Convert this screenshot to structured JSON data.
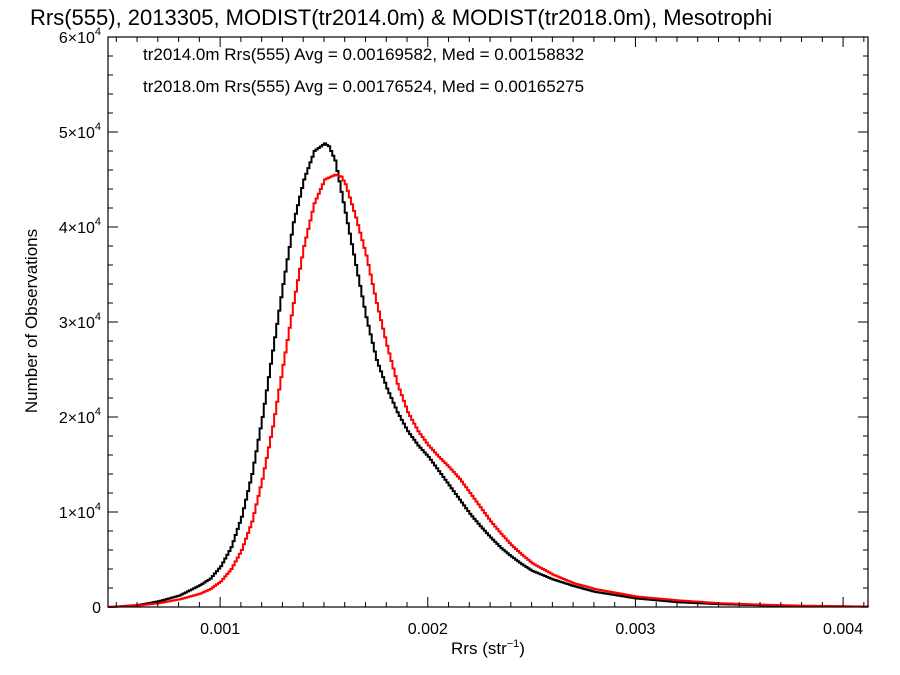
{
  "chart_data": {
    "type": "line",
    "title": "Rrs(555), 2013305, MODIST(tr2014.0m) & MODIST(tr2018.0m), Mesotrophi",
    "xlabel_main": "Rrs (str",
    "xlabel_sup": "−1",
    "xlabel_close": ")",
    "ylabel": "Number of Observations",
    "xlim": [
      0.00046,
      0.00412
    ],
    "ylim": [
      0,
      60000
    ],
    "grid": false,
    "x_ticks": [
      {
        "value": 0.001,
        "label": "0.001"
      },
      {
        "value": 0.002,
        "label": "0.002"
      },
      {
        "value": 0.003,
        "label": "0.003"
      },
      {
        "value": 0.004,
        "label": "0.004"
      }
    ],
    "y_ticks": [
      {
        "value": 0,
        "label": "0",
        "mant": "",
        "exp": ""
      },
      {
        "value": 10000,
        "label": "1×10⁴",
        "mant": "1×10",
        "exp": "4"
      },
      {
        "value": 20000,
        "label": "2×10⁴",
        "mant": "2×10",
        "exp": "4"
      },
      {
        "value": 30000,
        "label": "3×10⁴",
        "mant": "3×10",
        "exp": "4"
      },
      {
        "value": 40000,
        "label": "4×10⁴",
        "mant": "4×10",
        "exp": "4"
      },
      {
        "value": 50000,
        "label": "5×10⁴",
        "mant": "5×10",
        "exp": "4"
      },
      {
        "value": 60000,
        "label": "6×10⁴",
        "mant": "6×10",
        "exp": "4"
      }
    ],
    "annotations": [
      {
        "text": "tr2014.0m Rrs(555) Avg = 0.00169582, Med = 0.00158832",
        "color": "#000000"
      },
      {
        "text": "tr2018.0m Rrs(555) Avg = 0.00176524, Med = 0.00165275",
        "color": "#ff0000"
      }
    ],
    "series": [
      {
        "color": "#000000",
        "x": [
          0.00046,
          0.0006,
          0.0007,
          0.0008,
          0.0009,
          0.00095,
          0.001,
          0.00105,
          0.0011,
          0.00115,
          0.0012,
          0.00125,
          0.0013,
          0.00135,
          0.0014,
          0.00145,
          0.0015,
          0.00152,
          0.00155,
          0.0016,
          0.00165,
          0.0017,
          0.00175,
          0.0018,
          0.00185,
          0.0019,
          0.00195,
          0.002,
          0.00205,
          0.0021,
          0.00215,
          0.0022,
          0.00225,
          0.0023,
          0.00235,
          0.0024,
          0.00245,
          0.0025,
          0.0026,
          0.0027,
          0.0028,
          0.003,
          0.0032,
          0.0034,
          0.0036,
          0.0038,
          0.004,
          0.00412
        ],
        "y": [
          0,
          200,
          600,
          1200,
          2300,
          3000,
          4300,
          6300,
          9500,
          14000,
          20000,
          27000,
          34000,
          40500,
          45000,
          48000,
          48800,
          48500,
          47000,
          41500,
          36000,
          30500,
          26000,
          23000,
          20500,
          18500,
          17000,
          15800,
          14300,
          12800,
          11300,
          9800,
          8500,
          7300,
          6200,
          5300,
          4500,
          3800,
          2900,
          2200,
          1600,
          900,
          500,
          300,
          180,
          100,
          60,
          40
        ]
      },
      {
        "color": "#ff0000",
        "x": [
          0.00046,
          0.0006,
          0.0007,
          0.0008,
          0.0009,
          0.00095,
          0.001,
          0.00105,
          0.0011,
          0.00115,
          0.0012,
          0.00125,
          0.0013,
          0.00135,
          0.0014,
          0.00145,
          0.0015,
          0.00155,
          0.00158,
          0.0016,
          0.00165,
          0.0017,
          0.00175,
          0.0018,
          0.00185,
          0.0019,
          0.00195,
          0.002,
          0.00205,
          0.0021,
          0.00215,
          0.0022,
          0.00225,
          0.0023,
          0.00235,
          0.0024,
          0.00245,
          0.0025,
          0.0026,
          0.0027,
          0.0028,
          0.003,
          0.0032,
          0.0034,
          0.0036,
          0.0038,
          0.004,
          0.00412
        ],
        "y": [
          0,
          150,
          400,
          800,
          1400,
          1900,
          2700,
          4000,
          6000,
          9000,
          13500,
          19000,
          25500,
          32000,
          38000,
          42500,
          45000,
          45500,
          45300,
          44500,
          41000,
          37000,
          32000,
          27500,
          23500,
          20500,
          18500,
          17000,
          15800,
          14700,
          13500,
          12000,
          10500,
          9000,
          7700,
          6500,
          5500,
          4600,
          3400,
          2500,
          1900,
          1100,
          700,
          400,
          250,
          140,
          80,
          50
        ]
      }
    ]
  }
}
